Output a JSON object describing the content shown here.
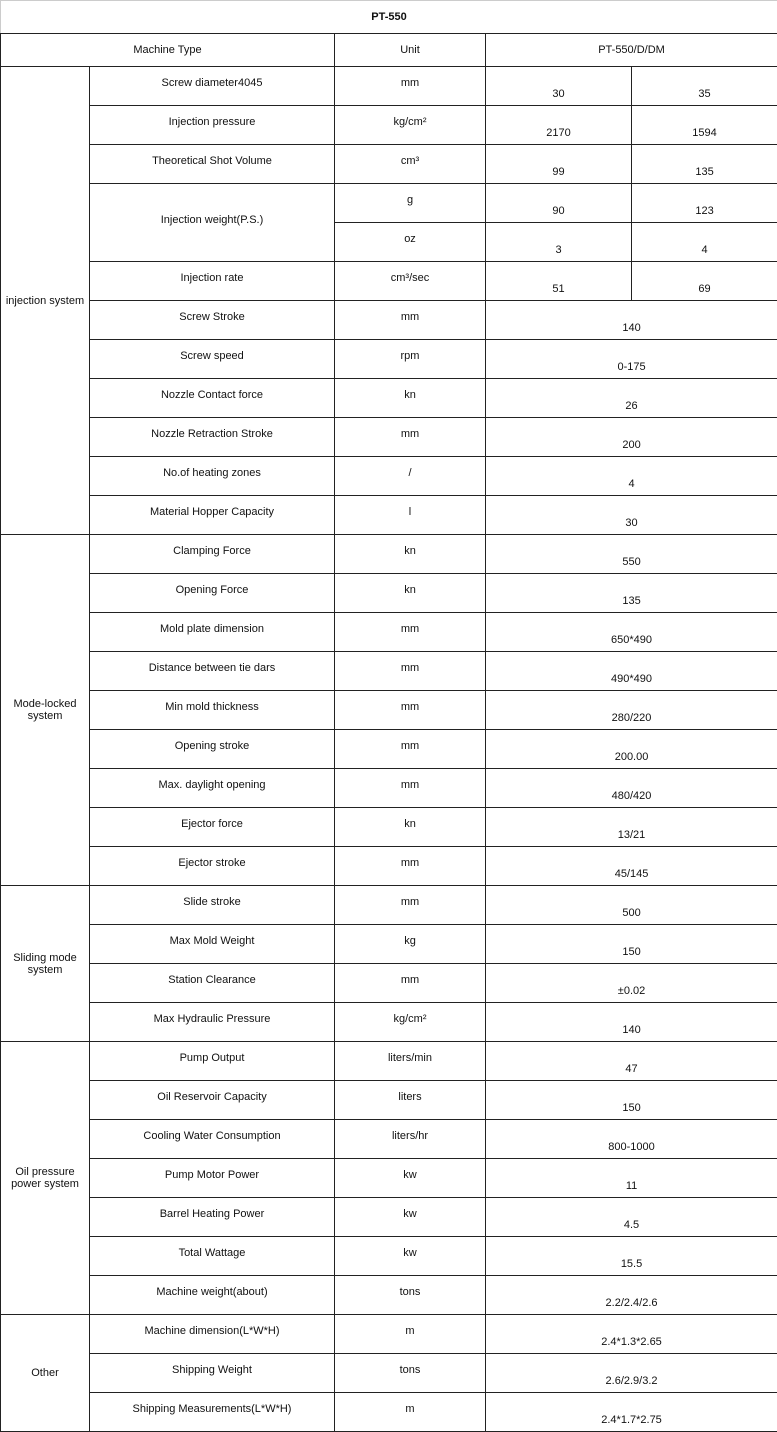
{
  "title": "PT-550",
  "header": {
    "machine_type": "Machine Type",
    "unit": "Unit",
    "model": "PT-550/D/DM"
  },
  "groups": [
    {
      "name": "injection system",
      "rows": [
        {
          "label": "Screw diameter4045",
          "unit": "mm",
          "values": [
            "30",
            "35"
          ]
        },
        {
          "label": "Injection pressure",
          "unit": "kg/cm²",
          "values": [
            "2170",
            "1594"
          ]
        },
        {
          "label": "Theoretical Shot Volume",
          "unit": "cm³",
          "values": [
            "99",
            "135"
          ]
        },
        {
          "label": "Injection weight(P.S.)",
          "sub": [
            {
              "unit": "g",
              "values": [
                "90",
                "123"
              ]
            },
            {
              "unit": "oz",
              "values": [
                "3",
                "4"
              ]
            }
          ]
        },
        {
          "label": "Injection rate",
          "unit": "cm³/sec",
          "values": [
            "51",
            "69"
          ]
        },
        {
          "label": "Screw Stroke",
          "unit": "mm",
          "values": [
            "140"
          ]
        },
        {
          "label": "Screw speed",
          "unit": "rpm",
          "values": [
            "0-175"
          ]
        },
        {
          "label": "Nozzle Contact force",
          "unit": "kn",
          "values": [
            "26"
          ]
        },
        {
          "label": "Nozzle Retraction Stroke",
          "unit": "mm",
          "values": [
            "200"
          ]
        },
        {
          "label": "No.of heating zones",
          "unit": "/",
          "values": [
            "4"
          ]
        },
        {
          "label": "Material Hopper Capacity",
          "unit": "l",
          "values": [
            "30"
          ]
        }
      ]
    },
    {
      "name": "Mode-locked system",
      "rows": [
        {
          "label": "Clamping Force",
          "unit": "kn",
          "values": [
            "550"
          ]
        },
        {
          "label": "Opening  Force",
          "unit": "kn",
          "values": [
            "135"
          ]
        },
        {
          "label": "Mold plate dimension",
          "unit": "mm",
          "values": [
            "650*490"
          ]
        },
        {
          "label": "Distance between tie dars",
          "unit": "mm",
          "values": [
            "490*490"
          ]
        },
        {
          "label": "Min mold thickness",
          "unit": "mm",
          "values": [
            "280/220"
          ]
        },
        {
          "label": "Opening stroke",
          "unit": "mm",
          "values": [
            "200.00"
          ]
        },
        {
          "label": "Max. daylight opening",
          "unit": "mm",
          "values": [
            "480/420"
          ]
        },
        {
          "label": "Ejector force",
          "unit": "kn",
          "values": [
            "13/21"
          ]
        },
        {
          "label": "Ejector stroke",
          "unit": "mm",
          "values": [
            "45/145"
          ]
        }
      ]
    },
    {
      "name": "Sliding mode system",
      "rows": [
        {
          "label": "Slide stroke",
          "unit": "mm",
          "values": [
            "500"
          ]
        },
        {
          "label": "Max Mold Weight",
          "unit": "kg",
          "values": [
            "150"
          ]
        },
        {
          "label": "Station Clearance",
          "unit": "mm",
          "values": [
            "±0.02"
          ]
        },
        {
          "label": "Max Hydraulic Pressure",
          "unit": "kg/cm²",
          "values": [
            "140"
          ]
        }
      ]
    },
    {
      "name": "Oil pressure power system",
      "rows": [
        {
          "label": "Pump Output",
          "unit": "liters/min",
          "values": [
            "47"
          ]
        },
        {
          "label": "Oil Reservoir Capacity",
          "unit": "liters",
          "values": [
            "150"
          ]
        },
        {
          "label": "Cooling Water Consumption",
          "unit": "liters/hr",
          "values": [
            "800-1000"
          ]
        },
        {
          "label": "Pump Motor Power",
          "unit": "kw",
          "values": [
            "11"
          ]
        },
        {
          "label": "Barrel Heating Power",
          "unit": "kw",
          "values": [
            "4.5"
          ]
        },
        {
          "label": "Total Wattage",
          "unit": "kw",
          "values": [
            "15.5"
          ]
        },
        {
          "label": "Machine weight(about)",
          "unit": "tons",
          "values": [
            "2.2/2.4/2.6"
          ]
        }
      ]
    },
    {
      "name": "Other",
      "rows": [
        {
          "label": "Machine dimension(L*W*H)",
          "unit": "m",
          "values": [
            "2.4*1.3*2.65"
          ]
        },
        {
          "label": "Shipping Weight",
          "unit": "tons",
          "values": [
            "2.6/2.9/3.2"
          ]
        },
        {
          "label": "Shipping Measurements(L*W*H)",
          "unit": "m",
          "values": [
            "2.4*1.7*2.75"
          ]
        }
      ]
    }
  ]
}
